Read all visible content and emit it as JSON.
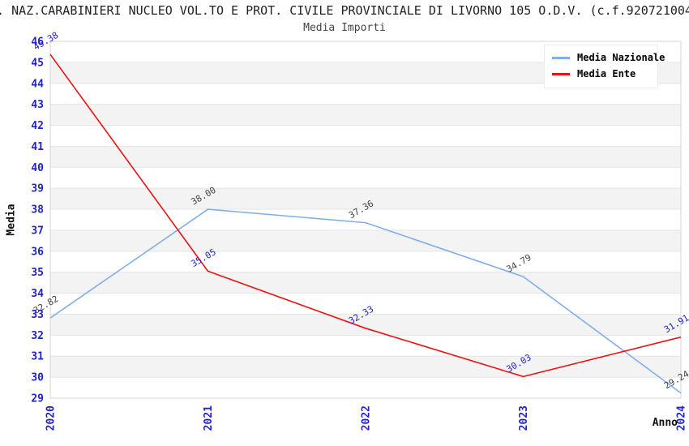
{
  "chart_data": {
    "type": "line",
    "title": ". NAZ.CARABINIERI NUCLEO VOL.TO E PROT. CIVILE PROVINCIALE DI LIVORNO 105 O.D.V. (c.f.920721004",
    "subtitle": "Media Importi",
    "xlabel": "Anno",
    "ylabel": "Media",
    "categories": [
      "2020",
      "2021",
      "2022",
      "2023",
      "2024"
    ],
    "series": [
      {
        "name": "Media Nazionale",
        "color": "#7fafe6",
        "label_color": "#444444",
        "values": [
          32.82,
          38.0,
          37.36,
          34.79,
          29.24
        ]
      },
      {
        "name": "Media Ente",
        "color": "#ee1111",
        "label_color": "#2222cc",
        "values": [
          45.38,
          35.05,
          32.33,
          30.03,
          31.91
        ]
      }
    ],
    "ylim": [
      29,
      46
    ],
    "yticks": [
      29,
      30,
      31,
      32,
      33,
      34,
      35,
      36,
      37,
      38,
      39,
      40,
      41,
      42,
      43,
      44,
      45,
      46
    ],
    "grid": "horizontal gridlines with alternating shaded bands",
    "legend_position": "top-right",
    "colors": {
      "axis_tick_label": "#2222cc",
      "band_fill": "#f3f3f3",
      "gridline": "#e4e4e4",
      "plot_border": "#d6d6d6",
      "plot_background": "#ffffff"
    }
  }
}
